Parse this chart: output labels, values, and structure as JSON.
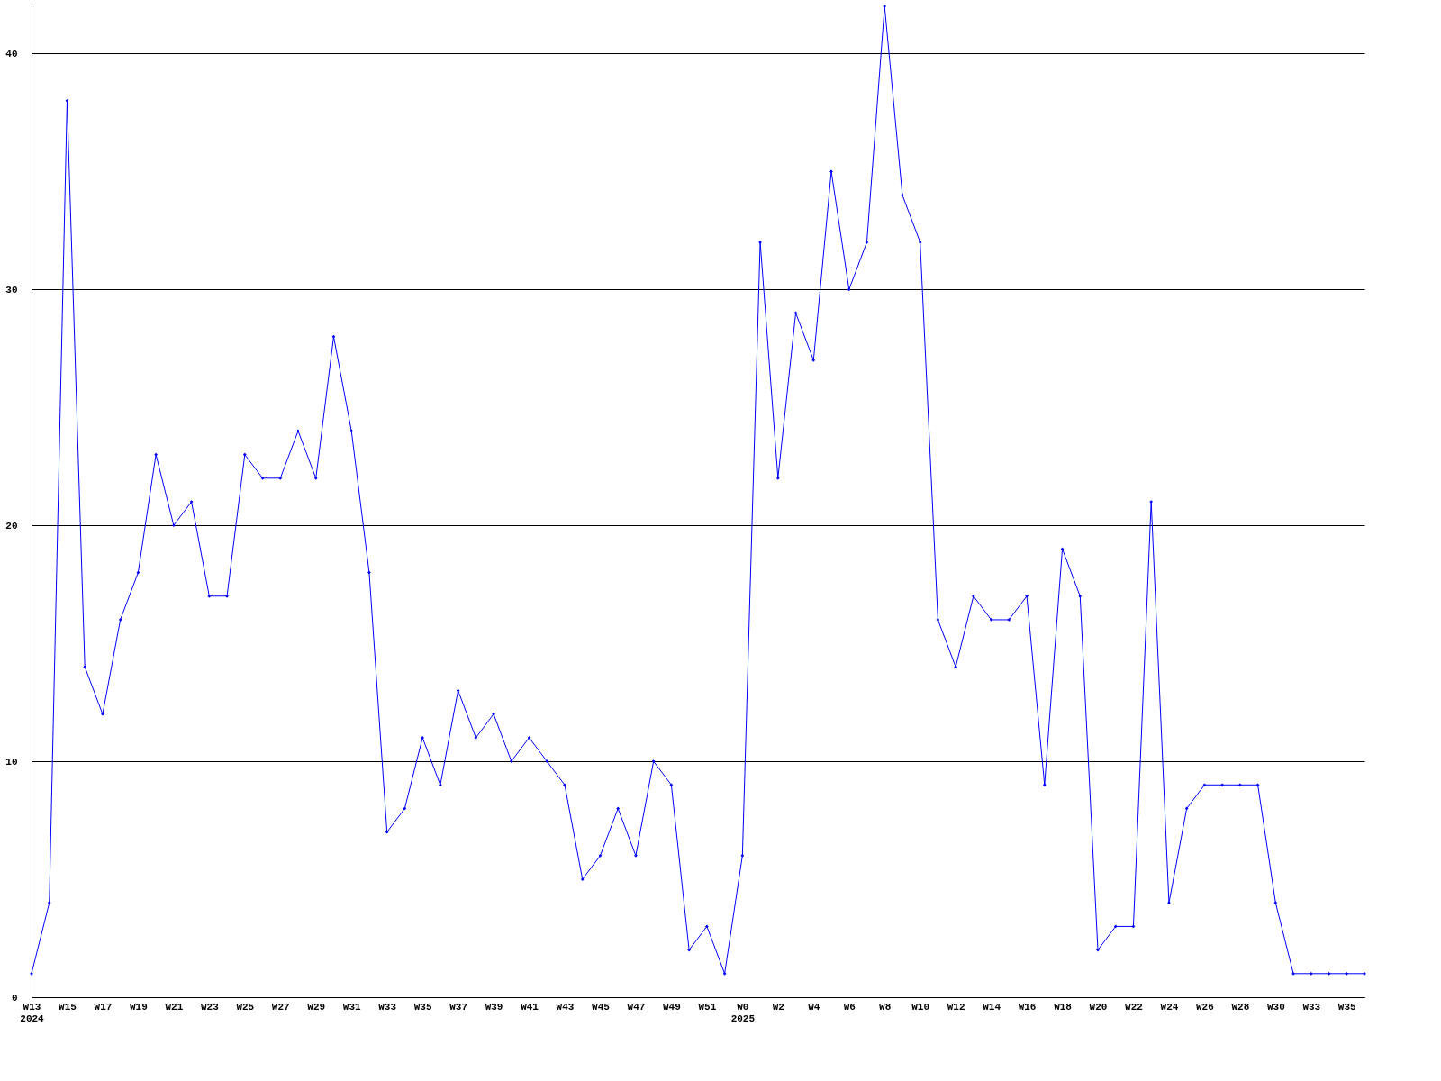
{
  "chart_data": {
    "type": "line",
    "categories": [
      "W13\n2024",
      null,
      "W15",
      null,
      "W17",
      null,
      "W19",
      null,
      "W21",
      null,
      "W23",
      null,
      "W25",
      null,
      "W27",
      null,
      "W29",
      null,
      "W31",
      null,
      "W33",
      null,
      "W35",
      null,
      "W37",
      null,
      "W39",
      null,
      "W41",
      null,
      "W43",
      null,
      "W45",
      null,
      "W47",
      null,
      "W49",
      null,
      "W51",
      null,
      "W0\n2025",
      null,
      "W2",
      null,
      "W4",
      null,
      "W6",
      null,
      "W8",
      null,
      "W10",
      null,
      "W12",
      null,
      "W14",
      null,
      "W16",
      null,
      "W18",
      null,
      "W20",
      null,
      "W22",
      null,
      "W24",
      null,
      "W26",
      null,
      "W28",
      null,
      "W30",
      null,
      "W33",
      null,
      "W35",
      null
    ],
    "series": [
      {
        "color": "#0000ff",
        "values": [
          1,
          4,
          38,
          14,
          12,
          16,
          18,
          23,
          20,
          21,
          17,
          17,
          23,
          22,
          22,
          24,
          22,
          28,
          24,
          18,
          7,
          8,
          11,
          9,
          13,
          11,
          12,
          10,
          11,
          10,
          9,
          5,
          6,
          8,
          6,
          10,
          9,
          2,
          3,
          1,
          6,
          32,
          22,
          29,
          27,
          35,
          30,
          32,
          42,
          34,
          32,
          16,
          14,
          17,
          16,
          16,
          17,
          9,
          19,
          17,
          2,
          3,
          3,
          21,
          4,
          8,
          9,
          9,
          9,
          9,
          4,
          1,
          1,
          1,
          1,
          1
        ]
      }
    ],
    "ylim": [
      0,
      42
    ],
    "yticks": [
      0,
      10,
      20,
      30,
      40
    ],
    "grid": "y",
    "marker": "diamond",
    "line_style": "solid"
  }
}
